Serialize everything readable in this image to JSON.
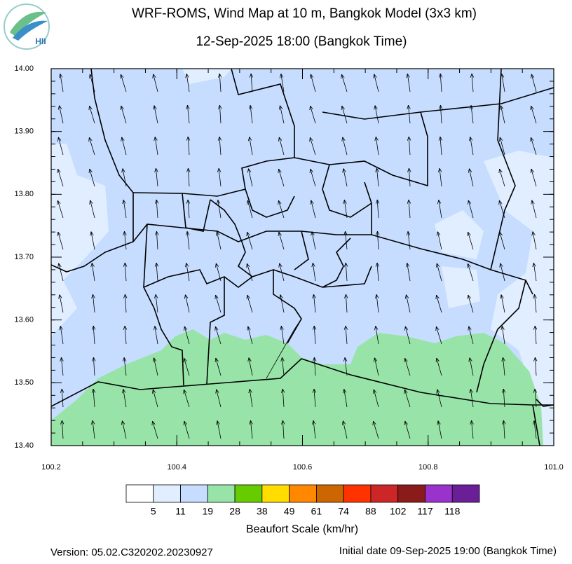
{
  "logo_text": "HII",
  "title": "WRF-ROMS, Wind Map at 10 m, Bangkok Model (3x3 km)",
  "subtitle": "12-Sep-2025 18:00 (Bangkok Time)",
  "map": {
    "xlim": [
      100.2,
      101.0
    ],
    "ylim": [
      13.4,
      14.0
    ],
    "xticks": [
      {
        "value": 100.2,
        "label": "100.2"
      },
      {
        "value": 100.4,
        "label": "100.4"
      },
      {
        "value": 100.6,
        "label": "100.6"
      },
      {
        "value": 100.8,
        "label": "100.8"
      },
      {
        "value": 101.0,
        "label": "101.0"
      }
    ],
    "yticks": [
      {
        "value": 13.4,
        "label": "13.40"
      },
      {
        "value": 13.5,
        "label": "13.50"
      },
      {
        "value": 13.6,
        "label": "13.60"
      },
      {
        "value": 13.7,
        "label": "13.70"
      },
      {
        "value": 13.8,
        "label": "13.80"
      },
      {
        "value": 13.9,
        "label": "13.90"
      },
      {
        "value": 14.0,
        "label": "14.00"
      }
    ]
  },
  "legend": {
    "title": "Beaufort Scale (km/hr)",
    "colors": [
      "#ffffff",
      "#e1eeff",
      "#c6ddff",
      "#98e4a8",
      "#66cc00",
      "#ffdd00",
      "#ff8800",
      "#cc6600",
      "#ff3300",
      "#cc2626",
      "#8b1a1a",
      "#9933cc",
      "#6a1f99"
    ],
    "labels": [
      5,
      11,
      19,
      28,
      38,
      49,
      61,
      74,
      88,
      102,
      117,
      118
    ]
  },
  "footer": {
    "version": "Version: 05.02.C320202.20230927",
    "initial": "Initial date 09-Sep-2025 19:00 (Bangkok Time)"
  }
}
